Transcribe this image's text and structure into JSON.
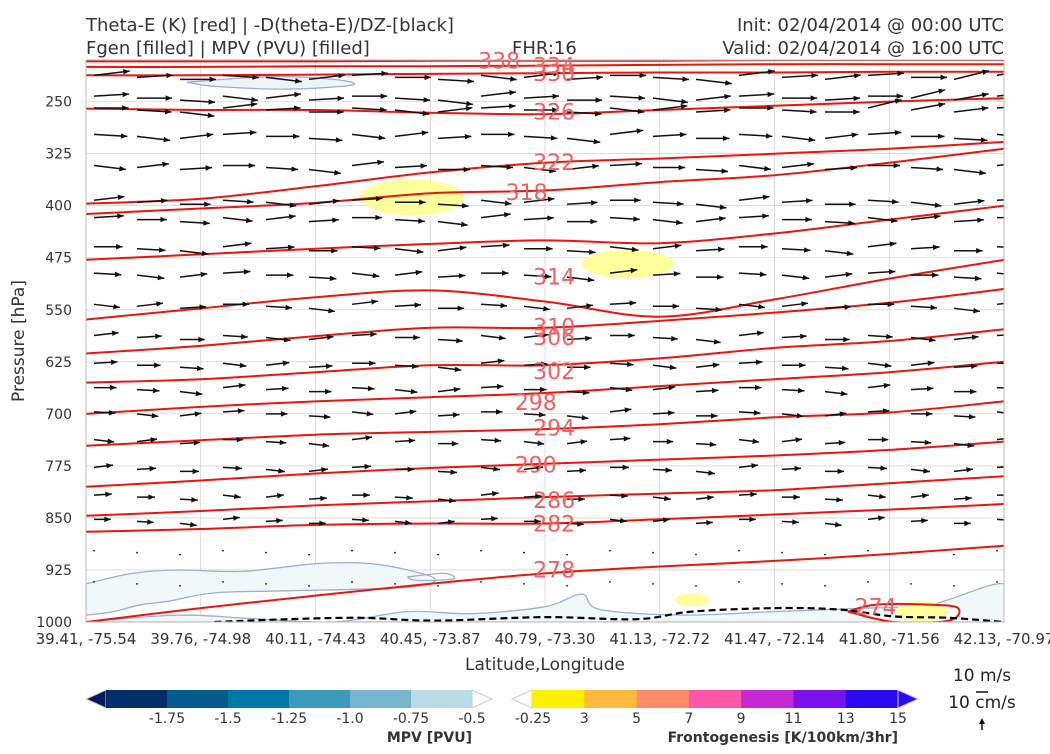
{
  "header": {
    "title_line1": "Theta-E (K) [red] | -D(theta-E)/DZ-[black]",
    "title_line2": "Fgen [filled] | MPV (PVU) [filled]",
    "fhr": "FHR:16",
    "init": "Init: 02/04/2014 @ 00:00 UTC",
    "valid": "Valid: 02/04/2014 @ 16:00 UTC"
  },
  "colors": {
    "theta_e": "#e8170d",
    "theta_e_label": "#f06060",
    "wind": "#111111",
    "mpv_contour": "#9eaecf",
    "mpv_fill": "#f1f8fa",
    "fgen_fill": "#ffff9c",
    "grid": "#c8c8c8"
  },
  "chart_data": {
    "type": "cross-section",
    "xlabel": "Latitude,Longitude",
    "ylabel": "Pressure [hPa]",
    "x_ticks": [
      "39.41, -75.54",
      "39.76, -74.98",
      "40.11, -74.43",
      "40.45, -73.87",
      "40.79, -73.30",
      "41.13, -72.72",
      "41.47, -72.14",
      "41.80, -71.56",
      "42.13, -70.97"
    ],
    "y_ticks": [
      250,
      325,
      400,
      475,
      550,
      625,
      700,
      775,
      850,
      925,
      1000
    ],
    "ylim": [
      1000,
      190
    ],
    "theta_e_contours": [
      {
        "value": 338,
        "p": [
          192,
          192,
          192,
          191,
          191,
          191,
          190,
          190,
          190
        ]
      },
      {
        "value": 334,
        "p": [
          200,
          200,
          199,
          199,
          198,
          197,
          196,
          196,
          196
        ]
      },
      {
        "value": 330,
        "p": [
          212,
          212,
          211,
          210,
          209,
          208,
          208,
          207,
          207
        ]
      },
      {
        "value": 326,
        "p": [
          260,
          262,
          262,
          266,
          268,
          262,
          256,
          250,
          245
        ]
      },
      {
        "value": 322,
        "p": [
          397,
          390,
          372,
          352,
          338,
          332,
          325,
          318,
          308
        ]
      },
      {
        "value": 318,
        "p": [
          412,
          404,
          396,
          382,
          378,
          366,
          356,
          338,
          318
        ]
      },
      {
        "value": 314,
        "p": [
          478,
          470,
          462,
          455,
          450,
          454,
          440,
          420,
          400
        ]
      },
      {
        "value": 310,
        "p": [
          564,
          548,
          532,
          522,
          538,
          560,
          535,
          505,
          478
        ]
      },
      {
        "value": 306,
        "p": [
          613,
          602,
          588,
          576,
          576,
          566,
          554,
          540,
          520
        ]
      },
      {
        "value": 302,
        "p": [
          655,
          650,
          640,
          630,
          630,
          620,
          605,
          595,
          578
        ]
      },
      {
        "value": 298,
        "p": [
          700,
          690,
          682,
          676,
          670,
          660,
          650,
          640,
          625
        ]
      },
      {
        "value": 294,
        "p": [
          746,
          738,
          730,
          726,
          722,
          715,
          705,
          698,
          682
        ]
      },
      {
        "value": 290,
        "p": [
          805,
          796,
          786,
          778,
          772,
          766,
          760,
          752,
          740
        ]
      },
      {
        "value": 286,
        "p": [
          847,
          840,
          832,
          826,
          820,
          815,
          810,
          800,
          790
        ]
      },
      {
        "value": 282,
        "p": [
          870,
          866,
          860,
          858,
          858,
          852,
          845,
          838,
          830
        ]
      },
      {
        "value": 278,
        "p": [
          1000,
          980,
          962,
          945,
          930,
          920,
          912,
          902,
          890
        ]
      }
    ],
    "contour_labels": [
      {
        "text": "338",
        "x": 0.45,
        "p": 191
      },
      {
        "text": "334",
        "x": 0.51,
        "p": 198
      },
      {
        "text": "330",
        "x": 0.51,
        "p": 209
      },
      {
        "text": "326",
        "x": 0.51,
        "p": 264
      },
      {
        "text": "322",
        "x": 0.51,
        "p": 337
      },
      {
        "text": "318",
        "x": 0.48,
        "p": 380
      },
      {
        "text": "314",
        "x": 0.51,
        "p": 502
      },
      {
        "text": "310",
        "x": 0.51,
        "p": 574
      },
      {
        "text": "306",
        "x": 0.51,
        "p": 589
      },
      {
        "text": "302",
        "x": 0.51,
        "p": 638
      },
      {
        "text": "298",
        "x": 0.49,
        "p": 683
      },
      {
        "text": "294",
        "x": 0.51,
        "p": 720
      },
      {
        "text": "290",
        "x": 0.49,
        "p": 773
      },
      {
        "text": "286",
        "x": 0.51,
        "p": 824
      },
      {
        "text": "282",
        "x": 0.51,
        "p": 858
      },
      {
        "text": "278",
        "x": 0.51,
        "p": 924
      },
      {
        "text": "274",
        "x": 0.86,
        "p": 978
      }
    ],
    "mpv_colorbar": {
      "label": "MPV [PVU]",
      "ticks": [
        "-1.75",
        "-1.5",
        "-1.25",
        "-1.0",
        "-0.75",
        "-0.5",
        "-0.25"
      ],
      "colors": [
        "#001a5c",
        "#032e6b",
        "#045a8d",
        "#0079a8",
        "#3a9bbd",
        "#77b6cc",
        "#b8dde6",
        "#ffffff"
      ]
    },
    "fgen_colorbar": {
      "label": "Frontogenesis [K/100km/3hr]",
      "ticks": [
        "3",
        "5",
        "7",
        "9",
        "11",
        "13",
        "15"
      ],
      "colors": [
        "#ffffff",
        "#fff200",
        "#febb3f",
        "#fe8b6a",
        "#fe57a8",
        "#c62ad6",
        "#7a12f0",
        "#2a0af0",
        "#2a0af0"
      ]
    },
    "wind_scale": {
      "horizontal": "10 m/s",
      "vertical": "10 cm/s"
    }
  }
}
